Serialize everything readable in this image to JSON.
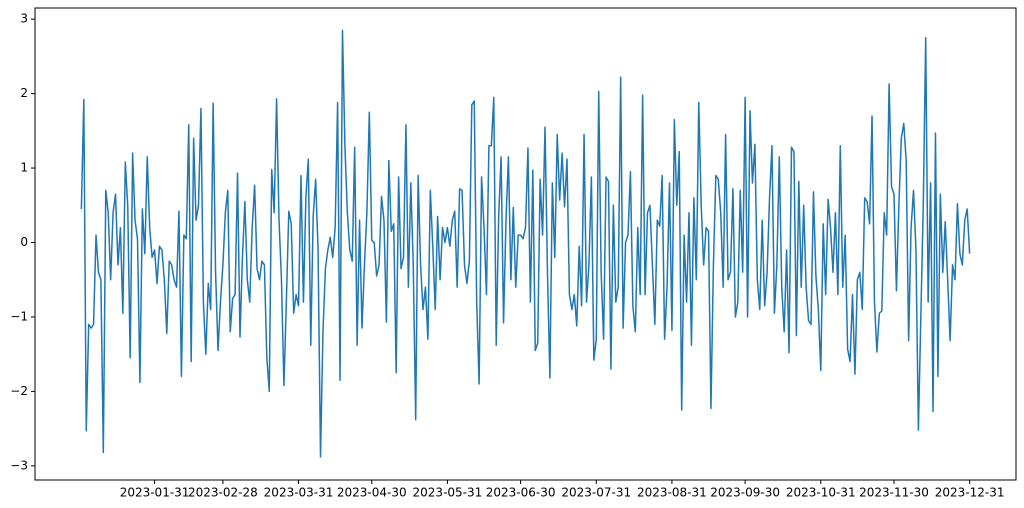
{
  "chart_data": {
    "type": "line",
    "x": [
      "2023-01-01",
      "2023-01-02",
      "2023-01-03",
      "2023-01-04",
      "2023-01-05",
      "2023-01-06",
      "2023-01-07",
      "2023-01-08",
      "2023-01-09",
      "2023-01-10",
      "2023-01-11",
      "2023-01-12",
      "2023-01-13",
      "2023-01-14",
      "2023-01-15",
      "2023-01-16",
      "2023-01-17",
      "2023-01-18",
      "2023-01-19",
      "2023-01-20",
      "2023-01-21",
      "2023-01-22",
      "2023-01-23",
      "2023-01-24",
      "2023-01-25",
      "2023-01-26",
      "2023-01-27",
      "2023-01-28",
      "2023-01-29",
      "2023-01-30",
      "2023-01-31",
      "2023-02-01",
      "2023-02-02",
      "2023-02-03",
      "2023-02-04",
      "2023-02-05",
      "2023-02-06",
      "2023-02-07",
      "2023-02-08",
      "2023-02-09",
      "2023-02-10",
      "2023-02-11",
      "2023-02-12",
      "2023-02-13",
      "2023-02-14",
      "2023-02-15",
      "2023-02-16",
      "2023-02-17",
      "2023-02-18",
      "2023-02-19",
      "2023-02-20",
      "2023-02-21",
      "2023-02-22",
      "2023-02-23",
      "2023-02-24",
      "2023-02-25",
      "2023-02-26",
      "2023-02-27",
      "2023-02-28",
      "2023-03-01",
      "2023-03-02",
      "2023-03-03",
      "2023-03-04",
      "2023-03-05",
      "2023-03-06",
      "2023-03-07",
      "2023-03-08",
      "2023-03-09",
      "2023-03-10",
      "2023-03-11",
      "2023-03-12",
      "2023-03-13",
      "2023-03-14",
      "2023-03-15",
      "2023-03-16",
      "2023-03-17",
      "2023-03-18",
      "2023-03-19",
      "2023-03-20",
      "2023-03-21",
      "2023-03-22",
      "2023-03-23",
      "2023-03-24",
      "2023-03-25",
      "2023-03-26",
      "2023-03-27",
      "2023-03-28",
      "2023-03-29",
      "2023-03-30",
      "2023-03-31",
      "2023-04-01",
      "2023-04-02",
      "2023-04-03",
      "2023-04-04",
      "2023-04-05",
      "2023-04-06",
      "2023-04-07",
      "2023-04-08",
      "2023-04-09",
      "2023-04-10",
      "2023-04-11",
      "2023-04-12",
      "2023-04-13",
      "2023-04-14",
      "2023-04-15",
      "2023-04-16",
      "2023-04-17",
      "2023-04-18",
      "2023-04-19",
      "2023-04-20",
      "2023-04-21",
      "2023-04-22",
      "2023-04-23",
      "2023-04-24",
      "2023-04-25",
      "2023-04-26",
      "2023-04-27",
      "2023-04-28",
      "2023-04-29",
      "2023-04-30",
      "2023-05-01",
      "2023-05-02",
      "2023-05-03",
      "2023-05-04",
      "2023-05-05",
      "2023-05-06",
      "2023-05-07",
      "2023-05-08",
      "2023-05-09",
      "2023-05-10",
      "2023-05-11",
      "2023-05-12",
      "2023-05-13",
      "2023-05-14",
      "2023-05-15",
      "2023-05-16",
      "2023-05-17",
      "2023-05-18",
      "2023-05-19",
      "2023-05-20",
      "2023-05-21",
      "2023-05-22",
      "2023-05-23",
      "2023-05-24",
      "2023-05-25",
      "2023-05-26",
      "2023-05-27",
      "2023-05-28",
      "2023-05-29",
      "2023-05-30",
      "2023-05-31",
      "2023-06-01",
      "2023-06-02",
      "2023-06-03",
      "2023-06-04",
      "2023-06-05",
      "2023-06-06",
      "2023-06-07",
      "2023-06-08",
      "2023-06-09",
      "2023-06-10",
      "2023-06-11",
      "2023-06-12",
      "2023-06-13",
      "2023-06-14",
      "2023-06-15",
      "2023-06-16",
      "2023-06-17",
      "2023-06-18",
      "2023-06-19",
      "2023-06-20",
      "2023-06-21",
      "2023-06-22",
      "2023-06-23",
      "2023-06-24",
      "2023-06-25",
      "2023-06-26",
      "2023-06-27",
      "2023-06-28",
      "2023-06-29",
      "2023-06-30",
      "2023-07-01",
      "2023-07-02",
      "2023-07-03",
      "2023-07-04",
      "2023-07-05",
      "2023-07-06",
      "2023-07-07",
      "2023-07-08",
      "2023-07-09",
      "2023-07-10",
      "2023-07-11",
      "2023-07-12",
      "2023-07-13",
      "2023-07-14",
      "2023-07-15",
      "2023-07-16",
      "2023-07-17",
      "2023-07-18",
      "2023-07-19",
      "2023-07-20",
      "2023-07-21",
      "2023-07-22",
      "2023-07-23",
      "2023-07-24",
      "2023-07-25",
      "2023-07-26",
      "2023-07-27",
      "2023-07-28",
      "2023-07-29",
      "2023-07-30",
      "2023-07-31",
      "2023-08-01",
      "2023-08-02",
      "2023-08-03",
      "2023-08-04",
      "2023-08-05",
      "2023-08-06",
      "2023-08-07",
      "2023-08-08",
      "2023-08-09",
      "2023-08-10",
      "2023-08-11",
      "2023-08-12",
      "2023-08-13",
      "2023-08-14",
      "2023-08-15",
      "2023-08-16",
      "2023-08-17",
      "2023-08-18",
      "2023-08-19",
      "2023-08-20",
      "2023-08-21",
      "2023-08-22",
      "2023-08-23",
      "2023-08-24",
      "2023-08-25",
      "2023-08-26",
      "2023-08-27",
      "2023-08-28",
      "2023-08-29",
      "2023-08-30",
      "2023-08-31",
      "2023-09-01",
      "2023-09-02",
      "2023-09-03",
      "2023-09-04",
      "2023-09-05",
      "2023-09-06",
      "2023-09-07",
      "2023-09-08",
      "2023-09-09",
      "2023-09-10",
      "2023-09-11",
      "2023-09-12",
      "2023-09-13",
      "2023-09-14",
      "2023-09-15",
      "2023-09-16",
      "2023-09-17",
      "2023-09-18",
      "2023-09-19",
      "2023-09-20",
      "2023-09-21",
      "2023-09-22",
      "2023-09-23",
      "2023-09-24",
      "2023-09-25",
      "2023-09-26",
      "2023-09-27",
      "2023-09-28",
      "2023-09-29",
      "2023-09-30",
      "2023-10-01",
      "2023-10-02",
      "2023-10-03",
      "2023-10-04",
      "2023-10-05",
      "2023-10-06",
      "2023-10-07",
      "2023-10-08",
      "2023-10-09",
      "2023-10-10",
      "2023-10-11",
      "2023-10-12",
      "2023-10-13",
      "2023-10-14",
      "2023-10-15",
      "2023-10-16",
      "2023-10-17",
      "2023-10-18",
      "2023-10-19",
      "2023-10-20",
      "2023-10-21",
      "2023-10-22",
      "2023-10-23",
      "2023-10-24",
      "2023-10-25",
      "2023-10-26",
      "2023-10-27",
      "2023-10-28",
      "2023-10-29",
      "2023-10-30",
      "2023-10-31",
      "2023-11-01",
      "2023-11-02",
      "2023-11-03",
      "2023-11-04",
      "2023-11-05",
      "2023-11-06",
      "2023-11-07",
      "2023-11-08",
      "2023-11-09",
      "2023-11-10",
      "2023-11-11",
      "2023-11-12",
      "2023-11-13",
      "2023-11-14",
      "2023-11-15",
      "2023-11-16",
      "2023-11-17",
      "2023-11-18",
      "2023-11-19",
      "2023-11-20",
      "2023-11-21",
      "2023-11-22",
      "2023-11-23",
      "2023-11-24",
      "2023-11-25",
      "2023-11-26",
      "2023-11-27",
      "2023-11-28",
      "2023-11-29",
      "2023-11-30",
      "2023-12-01",
      "2023-12-02",
      "2023-12-03",
      "2023-12-04",
      "2023-12-05",
      "2023-12-06",
      "2023-12-07",
      "2023-12-08",
      "2023-12-09",
      "2023-12-10",
      "2023-12-11",
      "2023-12-12",
      "2023-12-13",
      "2023-12-14",
      "2023-12-15",
      "2023-12-16",
      "2023-12-17",
      "2023-12-18",
      "2023-12-19",
      "2023-12-20",
      "2023-12-21",
      "2023-12-22",
      "2023-12-23",
      "2023-12-24",
      "2023-12-25",
      "2023-12-26",
      "2023-12-27",
      "2023-12-28",
      "2023-12-29",
      "2023-12-30",
      "2023-12-31"
    ],
    "values": [
      0.45,
      1.92,
      -2.53,
      -1.1,
      -1.15,
      -1.1,
      0.1,
      -0.4,
      -0.5,
      -2.82,
      0.7,
      0.4,
      -0.5,
      0.4,
      0.65,
      -0.3,
      0.2,
      -0.95,
      1.08,
      0.5,
      -1.55,
      1.2,
      0.3,
      0.05,
      -1.88,
      0.45,
      -0.15,
      1.15,
      0.2,
      -0.2,
      -0.1,
      -0.55,
      -0.05,
      -0.1,
      -0.5,
      -1.22,
      -0.25,
      -0.3,
      -0.5,
      -0.6,
      0.42,
      -1.8,
      0.1,
      0.05,
      1.58,
      -1.6,
      1.4,
      0.3,
      0.5,
      1.8,
      -0.8,
      -1.5,
      -0.55,
      -0.9,
      1.87,
      -0.4,
      -1.45,
      -0.8,
      -0.3,
      0.4,
      0.7,
      -1.2,
      -0.75,
      -0.7,
      0.93,
      -1.27,
      -0.2,
      0.55,
      -0.5,
      -0.8,
      0.2,
      0.77,
      -0.35,
      -0.5,
      -0.25,
      -0.3,
      -1.55,
      -2.0,
      0.98,
      0.4,
      1.93,
      0.3,
      -0.5,
      -1.92,
      -0.8,
      0.42,
      0.25,
      -0.95,
      -0.7,
      -0.85,
      0.9,
      -0.8,
      0.6,
      1.12,
      -1.38,
      0.35,
      0.85,
      -0.1,
      -2.88,
      -1.2,
      -0.35,
      -0.1,
      0.07,
      -0.2,
      0.2,
      1.88,
      -1.85,
      2.85,
      1.3,
      0.4,
      -0.1,
      -0.25,
      1.28,
      -1.38,
      0.3,
      -1.15,
      -0.3,
      0.4,
      1.75,
      0.03,
      0.0,
      -0.45,
      -0.3,
      0.62,
      0.3,
      -1.07,
      1.1,
      0.15,
      0.25,
      -1.75,
      0.88,
      -0.35,
      -0.2,
      1.58,
      -0.6,
      0.8,
      -0.3,
      -2.38,
      0.9,
      -0.3,
      -0.9,
      -0.6,
      -1.3,
      0.7,
      -0.05,
      -0.9,
      0.35,
      -0.5,
      0.2,
      0.0,
      0.2,
      -0.05,
      0.3,
      0.42,
      -0.6,
      0.72,
      0.7,
      -0.3,
      -0.55,
      -0.25,
      1.85,
      1.9,
      -0.8,
      -1.9,
      0.88,
      0.2,
      -0.7,
      1.3,
      1.3,
      1.95,
      -1.38,
      0.35,
      1.15,
      -1.08,
      0.3,
      1.15,
      -0.5,
      0.47,
      -0.6,
      0.1,
      0.1,
      0.05,
      0.2,
      1.27,
      -0.8,
      0.97,
      -1.45,
      -1.35,
      0.85,
      0.1,
      1.55,
      -0.4,
      -1.82,
      0.8,
      -0.2,
      1.45,
      0.57,
      1.2,
      0.48,
      1.12,
      -0.7,
      -0.9,
      -0.7,
      -1.12,
      -0.05,
      -0.85,
      1.45,
      -0.8,
      -0.3,
      0.88,
      -1.58,
      -1.3,
      2.03,
      -0.4,
      -1.3,
      0.88,
      0.82,
      -1.7,
      0.5,
      -0.8,
      -0.6,
      2.22,
      -1.15,
      0.0,
      0.1,
      0.95,
      -0.85,
      -1.2,
      0.2,
      -0.7,
      1.98,
      -0.7,
      0.4,
      0.5,
      -0.3,
      -1.1,
      0.3,
      0.22,
      0.9,
      -1.3,
      -0.6,
      0.8,
      -1.18,
      1.65,
      0.5,
      1.22,
      -2.25,
      0.1,
      -0.8,
      0.4,
      -1.38,
      0.6,
      -0.5,
      1.88,
      0.5,
      -0.3,
      0.2,
      0.15,
      -2.23,
      -0.3,
      0.9,
      0.85,
      0.4,
      -0.6,
      1.45,
      -0.5,
      -0.4,
      0.72,
      -1.0,
      -0.8,
      0.7,
      -0.4,
      1.95,
      -1.0,
      1.77,
      0.8,
      1.32,
      -0.5,
      -0.9,
      0.3,
      -0.85,
      -0.4,
      0.6,
      1.3,
      -0.95,
      -0.3,
      1.15,
      -0.6,
      -1.2,
      -0.1,
      -1.48,
      1.28,
      1.22,
      -1.25,
      0.82,
      -0.6,
      0.5,
      -0.6,
      -1.05,
      -1.1,
      0.68,
      -0.45,
      -0.9,
      -1.72,
      0.25,
      -0.7,
      0.58,
      0.2,
      -0.4,
      0.4,
      -0.7,
      1.3,
      -0.6,
      0.1,
      -1.43,
      -1.6,
      -0.7,
      -1.77,
      -0.5,
      -0.4,
      -0.9,
      0.6,
      0.55,
      0.25,
      1.7,
      -0.8,
      -1.47,
      -0.95,
      -0.92,
      0.4,
      0.1,
      2.13,
      0.75,
      0.65,
      -0.65,
      0.5,
      1.4,
      1.6,
      1.1,
      -1.32,
      0.2,
      0.7,
      -0.1,
      -2.52,
      -1.0,
      0.5,
      2.75,
      -0.8,
      0.8,
      -2.27,
      1.47,
      -1.8,
      0.65,
      -0.4,
      0.28,
      -0.5,
      -1.32,
      -0.3,
      -0.5,
      0.52,
      -0.15,
      -0.3,
      0.3,
      0.45,
      -0.15
    ],
    "color": "#1f77b4",
    "xlim": [
      "2022-12-13",
      "2024-01-19"
    ],
    "xticks": [
      "2023-01-31",
      "2023-02-28",
      "2023-03-31",
      "2023-04-30",
      "2023-05-31",
      "2023-06-30",
      "2023-07-31",
      "2023-08-31",
      "2023-09-30",
      "2023-10-31",
      "2023-11-30",
      "2023-12-31"
    ],
    "ylim": [
      -3.19,
      3.15
    ],
    "yticks": [
      {
        "value": -3,
        "label": "−3"
      },
      {
        "value": -2,
        "label": "−2"
      },
      {
        "value": -1,
        "label": "−1"
      },
      0,
      1,
      2,
      3
    ]
  }
}
